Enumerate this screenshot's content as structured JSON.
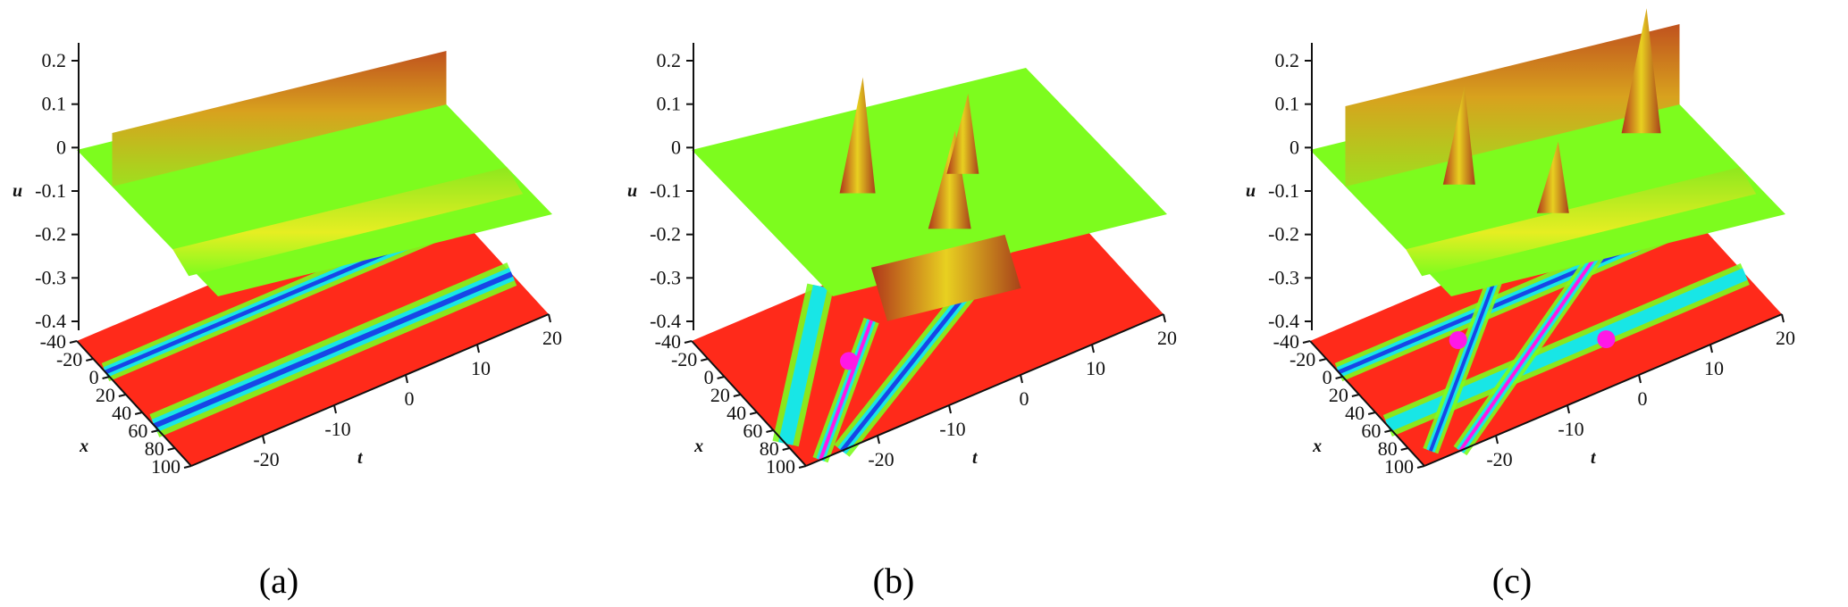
{
  "figure": {
    "panels": [
      {
        "caption": "(a)",
        "variant": "parallel-solitons"
      },
      {
        "caption": "(b)",
        "variant": "crossing-solitons"
      },
      {
        "caption": "(c)",
        "variant": "multi-interaction"
      }
    ],
    "colormap": [
      "#ff2a1a",
      "#ffd21c",
      "#7dfc1e",
      "#18e6e6",
      "#1846e6",
      "#ff18e6"
    ]
  },
  "chart_data": [
    {
      "type": "surface",
      "title": "(a)",
      "xlabel": "t",
      "ylabel": "x",
      "zlabel": "u",
      "xlim": [
        -30,
        20
      ],
      "ylim": [
        -40,
        100
      ],
      "zlim": [
        -0.4,
        0.2
      ],
      "x_ticks": [
        "-20",
        "-10",
        "0",
        "10",
        "20"
      ],
      "y_ticks": [
        "-40",
        "-20",
        "0",
        "20",
        "40",
        "60",
        "80",
        "100"
      ],
      "z_ticks": [
        "0.2",
        "0.1",
        "0",
        "-0.1",
        "-0.2",
        "-0.3",
        "-0.4"
      ],
      "contour_projection": true
    },
    {
      "type": "surface",
      "title": "(b)",
      "xlabel": "t",
      "ylabel": "x",
      "zlabel": "u",
      "xlim": [
        -30,
        20
      ],
      "ylim": [
        -40,
        100
      ],
      "zlim": [
        -0.4,
        0.2
      ],
      "x_ticks": [
        "-20",
        "-10",
        "0",
        "10",
        "20"
      ],
      "y_ticks": [
        "-40",
        "-20",
        "0",
        "20",
        "40",
        "60",
        "80",
        "100"
      ],
      "z_ticks": [
        "0.2",
        "0.1",
        "0",
        "-0.1",
        "-0.2",
        "-0.3",
        "-0.4"
      ],
      "contour_projection": true
    },
    {
      "type": "surface",
      "title": "(c)",
      "xlabel": "t",
      "ylabel": "x",
      "zlabel": "u",
      "xlim": [
        -30,
        20
      ],
      "ylim": [
        -40,
        100
      ],
      "zlim": [
        -0.4,
        0.2
      ],
      "x_ticks": [
        "-20",
        "-10",
        "0",
        "10",
        "20"
      ],
      "y_ticks": [
        "-40",
        "-20",
        "0",
        "20",
        "40",
        "60",
        "80",
        "100"
      ],
      "z_ticks": [
        "0.2",
        "0.1",
        "0",
        "-0.1",
        "-0.2",
        "-0.3",
        "-0.4"
      ],
      "contour_projection": true
    }
  ]
}
